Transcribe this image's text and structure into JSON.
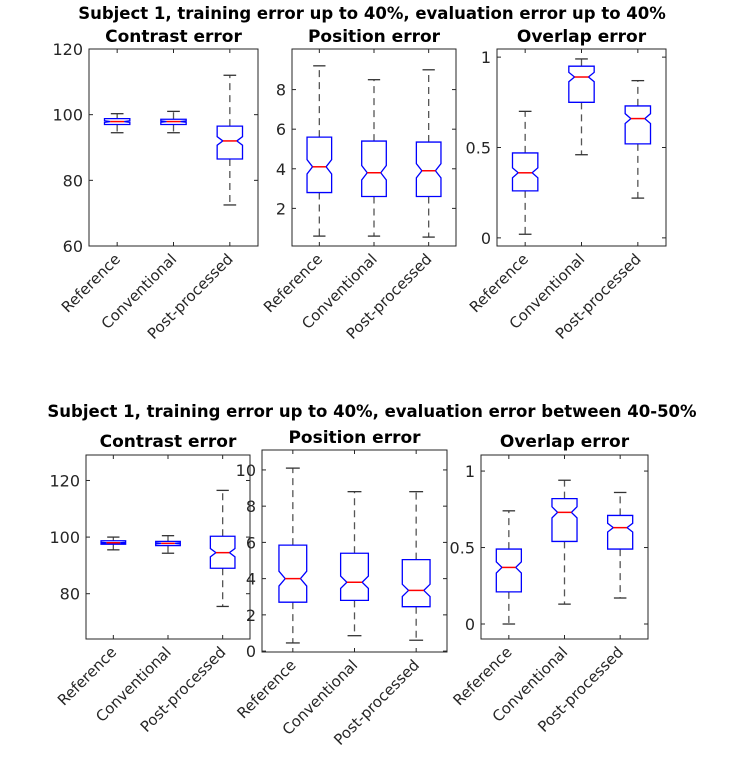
{
  "chart_data": [
    {
      "type": "boxplot",
      "suptitle": "Subject 1, training error up to 40%, evaluation error up to 40%",
      "panels": [
        {
          "title": "Contrast error",
          "categories": [
            "Reference",
            "Conventional",
            "Post-processed"
          ],
          "ylim": [
            60,
            120
          ],
          "yticks": [
            60,
            80,
            100,
            120
          ],
          "yticklabels": [
            "60",
            "80",
            "100",
            "120"
          ],
          "boxes": [
            {
              "whislo": 94.5,
              "q1": 97,
              "med": 97.9,
              "q3": 98.8,
              "whishi": 100.3
            },
            {
              "whislo": 94.5,
              "q1": 97,
              "med": 97.9,
              "q3": 98.6,
              "whishi": 101
            },
            {
              "whislo": 72.5,
              "q1": 86.5,
              "med": 92,
              "q3": 96.5,
              "whishi": 112
            }
          ]
        },
        {
          "title": "Position error",
          "categories": [
            "Reference",
            "Conventional",
            "Post-processed"
          ],
          "ylim": [
            0.1,
            10.05
          ],
          "yticks": [
            2,
            4,
            6,
            8
          ],
          "yticklabels": [
            "2",
            "4",
            "6",
            "8"
          ],
          "boxes": [
            {
              "whislo": 0.6,
              "q1": 2.8,
              "med": 4.1,
              "q3": 5.6,
              "whishi": 9.2
            },
            {
              "whislo": 0.6,
              "q1": 2.6,
              "med": 3.8,
              "q3": 5.4,
              "whishi": 8.5
            },
            {
              "whislo": 0.55,
              "q1": 2.6,
              "med": 3.9,
              "q3": 5.35,
              "whishi": 9.0
            }
          ]
        },
        {
          "title": "Overlap error",
          "categories": [
            "Reference",
            "Conventional",
            "Post-processed"
          ],
          "ylim": [
            -0.045,
            1.045
          ],
          "yticks": [
            0,
            0.5,
            1
          ],
          "yticklabels": [
            "0",
            "0.5",
            "1"
          ],
          "boxes": [
            {
              "whislo": 0.02,
              "q1": 0.26,
              "med": 0.36,
              "q3": 0.47,
              "whishi": 0.7
            },
            {
              "whislo": 0.46,
              "q1": 0.75,
              "med": 0.89,
              "q3": 0.95,
              "whishi": 0.99
            },
            {
              "whislo": 0.22,
              "q1": 0.52,
              "med": 0.66,
              "q3": 0.73,
              "whishi": 0.87
            }
          ]
        }
      ]
    },
    {
      "type": "boxplot",
      "suptitle": "Subject 1, training error up to 40%, evaluation error between 40-50%",
      "panels": [
        {
          "title": "Contrast error",
          "categories": [
            "Reference",
            "Conventional",
            "Post-processed"
          ],
          "ylim": [
            64,
            129
          ],
          "yticks": [
            80,
            100,
            120
          ],
          "yticklabels": [
            "80",
            "100",
            "120"
          ],
          "boxes": [
            {
              "whislo": 95.5,
              "q1": 97.5,
              "med": 98,
              "q3": 98.7,
              "whishi": 100
            },
            {
              "whislo": 94.3,
              "q1": 97,
              "med": 97.8,
              "q3": 98.5,
              "whishi": 100.5
            },
            {
              "whislo": 75.5,
              "q1": 89,
              "med": 94.5,
              "q3": 100.3,
              "whishi": 116.5
            }
          ]
        },
        {
          "title": "Position error",
          "categories": [
            "Reference",
            "Conventional",
            "Post-processed"
          ],
          "ylim": [
            -0.05,
            11.1
          ],
          "yticks": [
            0,
            2,
            4,
            6,
            8,
            10
          ],
          "yticklabels": [
            "0",
            "2",
            "4",
            "6",
            "8",
            "10"
          ],
          "boxes": [
            {
              "whislo": 0.45,
              "q1": 2.7,
              "med": 4.0,
              "q3": 5.85,
              "whishi": 10.1
            },
            {
              "whislo": 0.85,
              "q1": 2.8,
              "med": 3.8,
              "q3": 5.4,
              "whishi": 8.8
            },
            {
              "whislo": 0.6,
              "q1": 2.45,
              "med": 3.35,
              "q3": 5.05,
              "whishi": 8.8
            }
          ]
        },
        {
          "title": "Overlap error",
          "categories": [
            "Reference",
            "Conventional",
            "Post-processed"
          ],
          "ylim": [
            -0.098,
            1.105
          ],
          "yticks": [
            0,
            0.5,
            1
          ],
          "yticklabels": [
            "0",
            "0.5",
            "1"
          ],
          "boxes": [
            {
              "whislo": 0.0,
              "q1": 0.21,
              "med": 0.37,
              "q3": 0.49,
              "whishi": 0.74
            },
            {
              "whislo": 0.13,
              "q1": 0.54,
              "med": 0.73,
              "q3": 0.82,
              "whishi": 0.94
            },
            {
              "whislo": 0.17,
              "q1": 0.49,
              "med": 0.63,
              "q3": 0.71,
              "whishi": 0.86
            }
          ]
        }
      ]
    }
  ],
  "colors": {
    "box": "#0000ff",
    "median": "#ff0000",
    "whisker": "#000000",
    "axis": "#262626"
  }
}
